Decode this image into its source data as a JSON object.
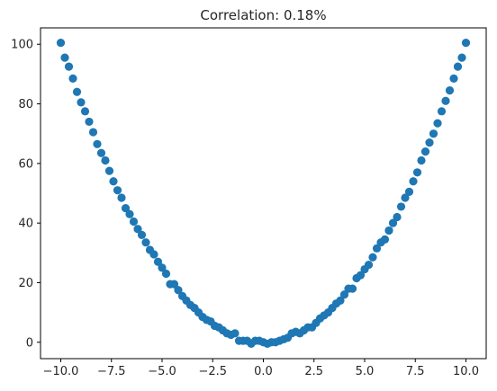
{
  "chart_data": {
    "type": "scatter",
    "title": "Correlation: 0.18%",
    "xlabel": "",
    "ylabel": "",
    "xlim": [
      -11,
      11
    ],
    "ylim": [
      -5.5,
      105.5
    ],
    "x_ticks": [
      -10.0,
      -7.5,
      -5.0,
      -2.5,
      0.0,
      2.5,
      5.0,
      7.5,
      10.0
    ],
    "x_tick_labels": [
      "−10.0",
      "−7.5",
      "−5.0",
      "−2.5",
      "0.0",
      "2.5",
      "5.0",
      "7.5",
      "10.0"
    ],
    "y_ticks": [
      0,
      20,
      40,
      60,
      80,
      100
    ],
    "y_tick_labels": [
      "0",
      "20",
      "40",
      "60",
      "80",
      "100"
    ],
    "grid": false,
    "legend": "none",
    "marker_color": "#1f77b4",
    "x": [
      -10.0,
      -9.8,
      -9.6,
      -9.4,
      -9.2,
      -9.0,
      -8.8,
      -8.6,
      -8.4,
      -8.2,
      -8.0,
      -7.8,
      -7.6,
      -7.4,
      -7.2,
      -7.0,
      -6.8,
      -6.6,
      -6.4,
      -6.2,
      -6.0,
      -5.8,
      -5.6,
      -5.4,
      -5.2,
      -5.0,
      -4.8,
      -4.6,
      -4.4,
      -4.2,
      -4.0,
      -3.8,
      -3.6,
      -3.4,
      -3.2,
      -3.0,
      -2.8,
      -2.6,
      -2.4,
      -2.2,
      -2.0,
      -1.8,
      -1.6,
      -1.4,
      -1.2,
      -1.0,
      -0.8,
      -0.6,
      -0.4,
      -0.2,
      0.0,
      0.2,
      0.4,
      0.6,
      0.8,
      1.0,
      1.2,
      1.4,
      1.6,
      1.8,
      2.0,
      2.2,
      2.4,
      2.6,
      2.8,
      3.0,
      3.2,
      3.4,
      3.6,
      3.8,
      4.0,
      4.2,
      4.4,
      4.6,
      4.8,
      5.0,
      5.2,
      5.4,
      5.6,
      5.8,
      6.0,
      6.2,
      6.4,
      6.6,
      6.8,
      7.0,
      7.2,
      7.4,
      7.6,
      7.8,
      8.0,
      8.2,
      8.4,
      8.6,
      8.8,
      9.0,
      9.2,
      9.4,
      9.6,
      9.8,
      10.0
    ],
    "y": [
      100.5,
      95.5,
      92.5,
      88.5,
      84.0,
      80.5,
      77.5,
      74.0,
      70.5,
      66.5,
      63.5,
      61.0,
      57.5,
      54.0,
      51.0,
      48.5,
      45.0,
      43.0,
      40.5,
      38.0,
      36.0,
      33.5,
      31.0,
      29.5,
      27.0,
      25.0,
      23.0,
      19.5,
      19.5,
      17.5,
      15.5,
      14.0,
      12.5,
      11.5,
      10.0,
      8.5,
      7.5,
      7.0,
      5.5,
      5.0,
      4.0,
      3.0,
      2.5,
      3.0,
      0.5,
      0.5,
      0.5,
      -0.5,
      0.5,
      0.5,
      0.0,
      -0.5,
      0.0,
      0.0,
      0.5,
      1.0,
      1.5,
      3.0,
      3.5,
      3.0,
      4.0,
      5.0,
      5.0,
      6.5,
      8.0,
      9.0,
      10.0,
      11.5,
      13.0,
      14.0,
      16.0,
      18.0,
      18.0,
      21.5,
      22.5,
      24.5,
      26.0,
      28.5,
      31.5,
      33.5,
      34.5,
      37.5,
      40.0,
      42.0,
      45.5,
      48.5,
      50.5,
      54.0,
      57.0,
      61.0,
      64.0,
      67.0,
      70.0,
      73.5,
      77.5,
      81.0,
      84.5,
      88.5,
      92.5,
      95.5,
      100.5
    ]
  }
}
